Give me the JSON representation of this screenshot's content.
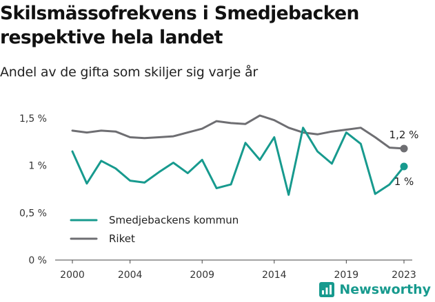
{
  "header": {
    "title": "Skilsmässofrekvens i Smedjebacken respektive hela landet",
    "subtitle": "Andel av de gifta som skiljer sig varje år"
  },
  "brand": {
    "name": "Newsworthy",
    "icon": "newsworthy-logo-icon",
    "color": "#179a8e"
  },
  "chart_data": {
    "type": "line",
    "title": "Skilsmässofrekvens i Smedjebacken respektive hela landet",
    "subtitle": "Andel av de gifta som skiljer sig varje år",
    "xlabel": "",
    "ylabel": "",
    "x": [
      2000,
      2001,
      2002,
      2003,
      2004,
      2005,
      2006,
      2007,
      2008,
      2009,
      2010,
      2011,
      2012,
      2013,
      2014,
      2015,
      2016,
      2017,
      2018,
      2019,
      2020,
      2021,
      2022,
      2023
    ],
    "x_ticks": [
      2000,
      2004,
      2009,
      2014,
      2019,
      2023
    ],
    "x_tick_labels": [
      "2000",
      "2004",
      "2009",
      "2014",
      "2019",
      "2023"
    ],
    "ylim": [
      0,
      1.5
    ],
    "y_ticks": [
      0,
      0.5,
      1,
      1.5
    ],
    "y_tick_labels": [
      "0 %",
      "0,5 %",
      "1 %",
      "1,5 %"
    ],
    "grid": false,
    "legend_position": "bottom-left",
    "series": [
      {
        "name": "Smedjebackens kommun",
        "color": "#179a8e",
        "values": [
          1.15,
          0.81,
          1.05,
          0.97,
          0.84,
          0.82,
          0.93,
          1.03,
          0.92,
          1.06,
          0.76,
          0.8,
          1.24,
          1.06,
          1.3,
          0.69,
          1.4,
          1.15,
          1.02,
          1.35,
          1.23,
          0.7,
          0.8,
          0.99
        ],
        "end_label": "1 %"
      },
      {
        "name": "Riket",
        "color": "#6e6e72",
        "values": [
          1.37,
          1.35,
          1.37,
          1.36,
          1.3,
          1.29,
          1.3,
          1.31,
          1.35,
          1.39,
          1.47,
          1.45,
          1.44,
          1.53,
          1.48,
          1.4,
          1.35,
          1.33,
          1.36,
          1.38,
          1.4,
          1.3,
          1.19,
          1.18
        ],
        "end_label": "1,2 %"
      }
    ]
  }
}
